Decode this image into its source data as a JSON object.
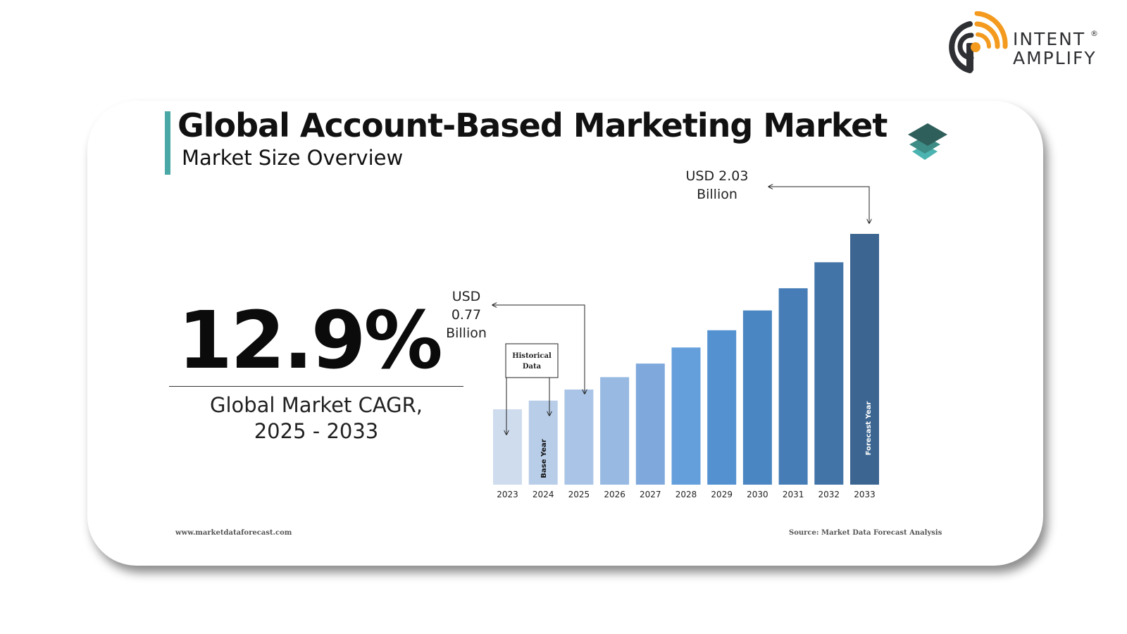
{
  "brand": {
    "line1": "INTENT",
    "line2": "AMPLIFY",
    "reg": "®",
    "colors": {
      "orange": "#f39a1f",
      "dark": "#2f3033"
    }
  },
  "card": {
    "title": "Global Account-Based Marketing Market",
    "subtitle": "Market Size Overview",
    "icon": "layers-icon",
    "accent": "#4aa8a6"
  },
  "cagr": {
    "value": "12.9%",
    "label_line1": "Global Market CAGR,",
    "label_line2": "2025 - 2033"
  },
  "chart_data": {
    "type": "bar",
    "categories": [
      "2023",
      "2024",
      "2025",
      "2026",
      "2027",
      "2028",
      "2029",
      "2030",
      "2031",
      "2032",
      "2033"
    ],
    "values": [
      0.61,
      0.68,
      0.77,
      0.87,
      0.98,
      1.11,
      1.25,
      1.41,
      1.59,
      1.8,
      2.03
    ],
    "ylim": [
      0,
      2.03
    ],
    "colors": [
      "#cfdcee",
      "#b8cde8",
      "#a9c4e6",
      "#97b9e2",
      "#7fa9dc",
      "#649fdb",
      "#5391d0",
      "#4a86c1",
      "#467db6",
      "#4274a8",
      "#3c6691"
    ],
    "title": "",
    "xlabel": "",
    "ylabel": "",
    "grid": false,
    "annotations": {
      "start_value": {
        "line1": "USD",
        "line2": "0.77",
        "line3": "Billion"
      },
      "end_value": {
        "line1": "USD 2.03",
        "line2": "Billion"
      },
      "historical": {
        "line1": "Historical",
        "line2": "Data"
      },
      "base_year": "Base Year",
      "forecast_year": "Forecast Year"
    }
  },
  "footer": {
    "website": "www.marketdataforecast.com",
    "source": "Source: Market Data Forecast Analysis"
  }
}
